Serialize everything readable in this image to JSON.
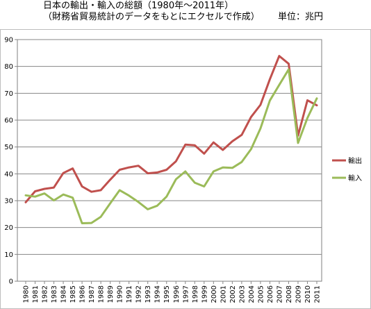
{
  "title_line1": "日本の輸出・輸入の総額（1980年～2011年）",
  "title_line2": "（財務省貿易統計のデータをもとにエクセルで作成）",
  "unit_label": "単位：兆円",
  "chart_data": {
    "type": "line",
    "title": "日本の輸出・輸入の総額（1980年～2011年）",
    "subtitle": "（財務省貿易統計のデータをもとにエクセルで作成）",
    "unit": "単位：兆円",
    "xlabel": "",
    "ylabel": "",
    "ylim": [
      0,
      90
    ],
    "yticks": [
      0,
      10,
      20,
      30,
      40,
      50,
      60,
      70,
      80,
      90
    ],
    "grid": "horizontal",
    "legend": "right",
    "x": [
      "1980",
      "1981",
      "1982",
      "1983",
      "1984",
      "1985",
      "1986",
      "1987",
      "1988",
      "1989",
      "1990",
      "1991",
      "1992",
      "1993",
      "1994",
      "1995",
      "1996",
      "1997",
      "1998",
      "1999",
      "2000",
      "2001",
      "2002",
      "2003",
      "2004",
      "2005",
      "2006",
      "2007",
      "2008",
      "2009",
      "2010",
      "2011"
    ],
    "series": [
      {
        "name": "輸出",
        "color": "#c0504d",
        "values": [
          29.4,
          33.5,
          34.4,
          34.9,
          40.3,
          42.0,
          35.3,
          33.3,
          33.9,
          37.8,
          41.5,
          42.4,
          43.0,
          40.2,
          40.5,
          41.5,
          44.7,
          50.9,
          50.6,
          47.5,
          51.7,
          48.9,
          52.1,
          54.5,
          61.2,
          65.7,
          75.2,
          83.9,
          81.0,
          54.2,
          67.4,
          65.5
        ]
      },
      {
        "name": "輸入",
        "color": "#9bbb59",
        "values": [
          32.0,
          31.5,
          32.7,
          30.1,
          32.3,
          31.1,
          21.6,
          21.7,
          24.0,
          29.0,
          33.9,
          31.9,
          29.5,
          26.8,
          28.1,
          31.5,
          38.0,
          40.9,
          36.7,
          35.3,
          40.9,
          42.4,
          42.2,
          44.4,
          49.2,
          56.9,
          67.3,
          73.1,
          78.9,
          51.5,
          60.8,
          68.1
        ]
      }
    ]
  }
}
